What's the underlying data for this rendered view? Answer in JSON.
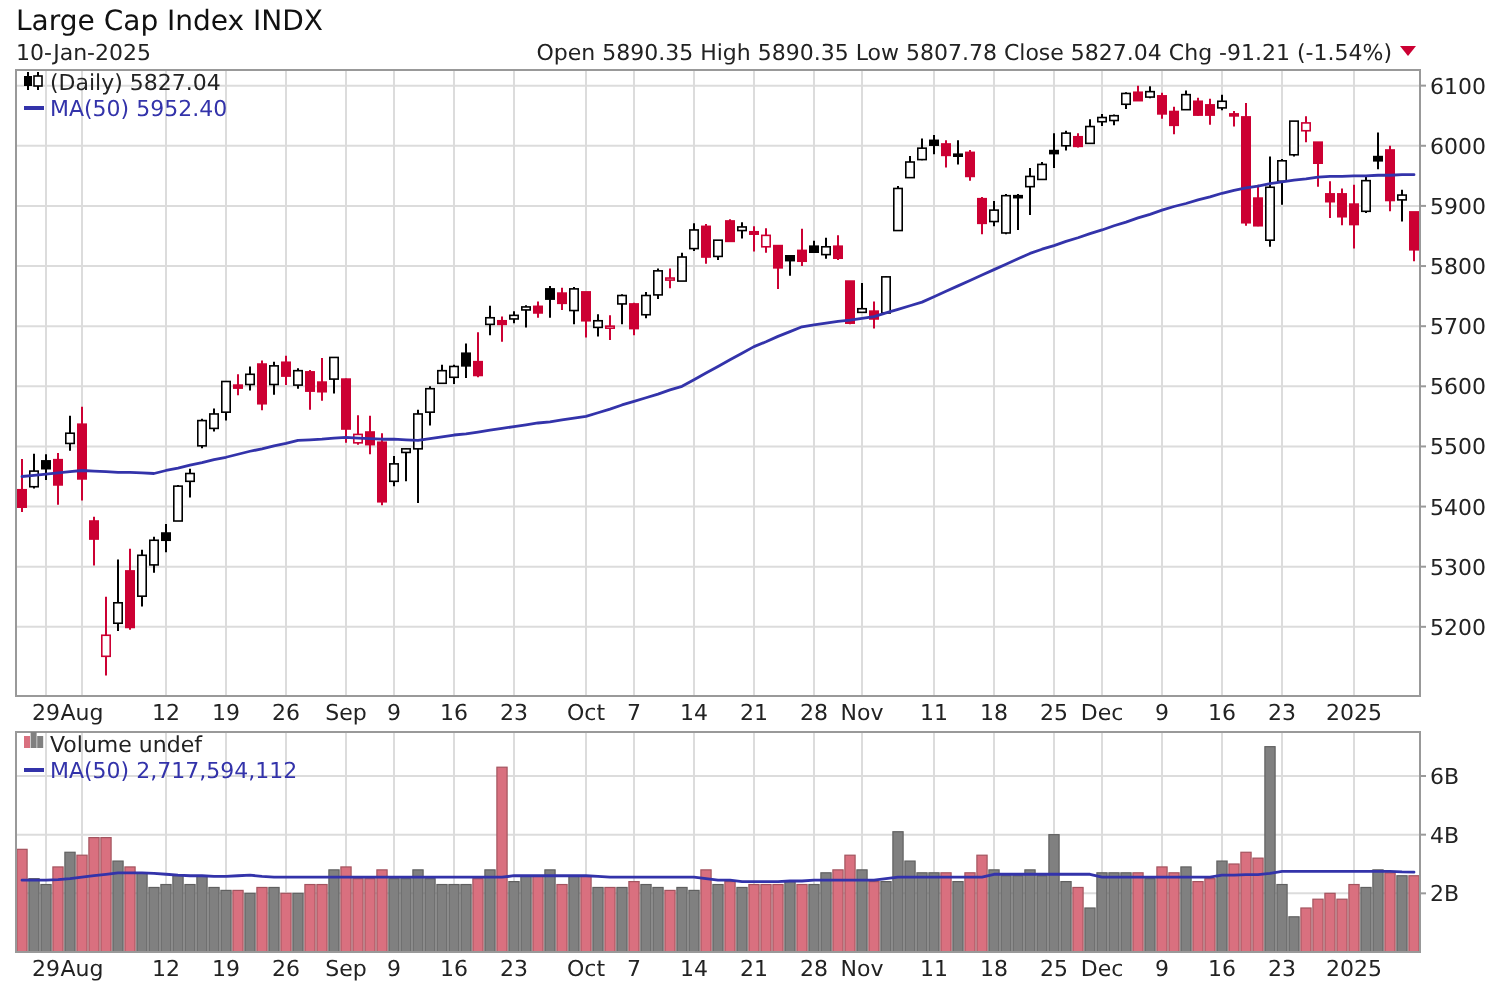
{
  "chart_data": [
    {
      "type": "candlestick",
      "title": "Large Cap Index INDX",
      "subtitle": "10-Jan-2025",
      "annotations": [
        "Open 5890.35  High 5890.35  Low 5807.78  Close 5827.04  Chg -91.21 (-1.54%)"
      ],
      "categories": [
        null,
        null,
        "29",
        null,
        null,
        "Aug",
        null,
        null,
        null,
        null,
        null,
        null,
        "12",
        null,
        null,
        null,
        null,
        "19",
        null,
        null,
        null,
        null,
        "26",
        null,
        null,
        null,
        null,
        "Sep",
        null,
        null,
        null,
        "9",
        null,
        null,
        null,
        null,
        "16",
        null,
        null,
        null,
        null,
        "23",
        null,
        null,
        null,
        null,
        null,
        "Oct",
        null,
        null,
        null,
        "7",
        null,
        null,
        null,
        null,
        "14",
        null,
        null,
        null,
        null,
        "21",
        null,
        null,
        null,
        null,
        "28",
        null,
        null,
        null,
        "Nov",
        null,
        null,
        null,
        null,
        null,
        "11",
        null,
        null,
        null,
        null,
        "18",
        null,
        null,
        null,
        null,
        "25",
        null,
        null,
        null,
        "Dec",
        null,
        null,
        null,
        null,
        "9",
        null,
        null,
        null,
        null,
        "16",
        null,
        null,
        null,
        null,
        "23",
        null,
        null,
        null,
        null,
        null,
        "2025",
        null,
        null,
        null,
        null,
        null
      ],
      "ylim": [
        5085,
        6126
      ],
      "yticks": [
        5200,
        5300,
        5400,
        5500,
        5600,
        5700,
        5800,
        5900,
        6000,
        6100
      ],
      "grid": true,
      "legend": "top left",
      "series": [
        {
          "name": "(Daily) 5827.04",
          "ohlc": [
            [
              5428,
              5479,
              5391,
              5399
            ],
            [
              5433,
              5488,
              5430,
              5459
            ],
            [
              5476,
              5487,
              5444,
              5463
            ],
            [
              5478,
              5489,
              5403,
              5436
            ],
            [
              5505,
              5551,
              5493,
              5522
            ],
            [
              5537,
              5566,
              5410,
              5446
            ],
            [
              5376,
              5383,
              5302,
              5346
            ],
            [
              5151,
              5250,
              5119,
              5186
            ],
            [
              5206,
              5312,
              5193,
              5240
            ],
            [
              5293,
              5330,
              5195,
              5199
            ],
            [
              5251,
              5328,
              5234,
              5319
            ],
            [
              5303,
              5350,
              5290,
              5344
            ],
            [
              5356,
              5371,
              5324,
              5344
            ],
            [
              5376,
              5436,
              5376,
              5434
            ],
            [
              5442,
              5463,
              5415,
              5455
            ],
            [
              5501,
              5546,
              5497,
              5543
            ],
            [
              5530,
              5563,
              5525,
              5554
            ],
            [
              5557,
              5608,
              5543,
              5608
            ],
            [
              5602,
              5620,
              5585,
              5597
            ],
            [
              5603,
              5633,
              5593,
              5620
            ],
            [
              5637,
              5643,
              5560,
              5571
            ],
            [
              5603,
              5641,
              5586,
              5634
            ],
            [
              5640,
              5651,
              5602,
              5617
            ],
            [
              5602,
              5630,
              5596,
              5626
            ],
            [
              5624,
              5627,
              5561,
              5592
            ],
            [
              5607,
              5647,
              5576,
              5591
            ],
            [
              5612,
              5648,
              5588,
              5648
            ],
            [
              5612,
              5613,
              5506,
              5529
            ],
            [
              5506,
              5552,
              5503,
              5520
            ],
            [
              5524,
              5551,
              5487,
              5503
            ],
            [
              5507,
              5522,
              5402,
              5408
            ],
            [
              5442,
              5484,
              5434,
              5471
            ],
            [
              5490,
              5497,
              5442,
              5496
            ],
            [
              5496,
              5561,
              5406,
              5554
            ],
            [
              5557,
              5600,
              5535,
              5596
            ],
            [
              5605,
              5636,
              5605,
              5626
            ],
            [
              5615,
              5636,
              5604,
              5633
            ],
            [
              5655,
              5671,
              5614,
              5634
            ],
            [
              5641,
              5690,
              5615,
              5618
            ],
            [
              5703,
              5734,
              5685,
              5714
            ],
            [
              5709,
              5716,
              5674,
              5703
            ],
            [
              5712,
              5725,
              5705,
              5718
            ],
            [
              5727,
              5735,
              5698,
              5732
            ],
            [
              5733,
              5741,
              5714,
              5722
            ],
            [
              5762,
              5767,
              5714,
              5745
            ],
            [
              5755,
              5764,
              5727,
              5738
            ],
            [
              5726,
              5765,
              5703,
              5762
            ],
            [
              5757,
              5757,
              5681,
              5709
            ],
            [
              5698,
              5720,
              5683,
              5709
            ],
            [
              5698,
              5718,
              5677,
              5700
            ],
            [
              5737,
              5753,
              5703,
              5751
            ],
            [
              5737,
              5739,
              5685,
              5696
            ],
            [
              5719,
              5757,
              5713,
              5751
            ],
            [
              5752,
              5796,
              5745,
              5792
            ],
            [
              5778,
              5796,
              5763,
              5780
            ],
            [
              5775,
              5822,
              5775,
              5815
            ],
            [
              5829,
              5871,
              5825,
              5860
            ],
            [
              5866,
              5870,
              5804,
              5815
            ],
            [
              5816,
              5843,
              5810,
              5843
            ],
            [
              5875,
              5878,
              5840,
              5841
            ],
            [
              5859,
              5873,
              5846,
              5865
            ],
            [
              5857,
              5866,
              5824,
              5853
            ],
            [
              5832,
              5863,
              5822,
              5851
            ],
            [
              5834,
              5834,
              5762,
              5797
            ],
            [
              5817,
              5817,
              5784,
              5809
            ],
            [
              5826,
              5862,
              5800,
              5808
            ],
            [
              5833,
              5842,
              5823,
              5823
            ],
            [
              5819,
              5847,
              5812,
              5832
            ],
            [
              5833,
              5851,
              5810,
              5813
            ],
            [
              5775,
              5775,
              5703,
              5705
            ],
            [
              5723,
              5772,
              5723,
              5729
            ],
            [
              5725,
              5741,
              5696,
              5712
            ],
            [
              5722,
              5783,
              5722,
              5782
            ],
            [
              5859,
              5933,
              5859,
              5929
            ],
            [
              5947,
              5983,
              5947,
              5973
            ],
            [
              5977,
              6012,
              5976,
              5996
            ],
            [
              6009,
              6018,
              5986,
              6001
            ],
            [
              6003,
              6009,
              5964,
              5984
            ],
            [
              5986,
              6009,
              5969,
              5985
            ],
            [
              5989,
              5993,
              5942,
              5949
            ],
            [
              5912,
              5915,
              5853,
              5871
            ],
            [
              5874,
              5908,
              5866,
              5893
            ],
            [
              5855,
              5920,
              5853,
              5917
            ],
            [
              5917,
              5920,
              5860,
              5917
            ],
            [
              5932,
              5963,
              5885,
              5949
            ],
            [
              5944,
              5973,
              5943,
              5969
            ],
            [
              5992,
              6021,
              5963,
              5987
            ],
            [
              6000,
              6025,
              5992,
              6021
            ],
            [
              6015,
              6021,
              5997,
              5999
            ],
            [
              6004,
              6044,
              6004,
              6032
            ],
            [
              6040,
              6053,
              6033,
              6047
            ],
            [
              6042,
              6052,
              6034,
              6050
            ],
            [
              6069,
              6089,
              6061,
              6087
            ],
            [
              6089,
              6100,
              6075,
              6075
            ],
            [
              6081,
              6099,
              6079,
              6090
            ],
            [
              6083,
              6088,
              6045,
              6053
            ],
            [
              6057,
              6065,
              6019,
              6034
            ],
            [
              6060,
              6092,
              6060,
              6085
            ],
            [
              6074,
              6080,
              6050,
              6051
            ],
            [
              6068,
              6078,
              6035,
              6051
            ],
            [
              6063,
              6085,
              6059,
              6074
            ],
            [
              6053,
              6058,
              6032,
              6050
            ],
            [
              6048,
              6071,
              5867,
              5872
            ],
            [
              5913,
              5935,
              5866,
              5867
            ],
            [
              5843,
              5982,
              5832,
              5931
            ],
            [
              5941,
              5978,
              5902,
              5975
            ],
            [
              5985,
              6041,
              5982,
              6041
            ],
            [
              6025,
              6049,
              6006,
              6038
            ],
            [
              6006,
              6006,
              5932,
              5971
            ],
            [
              5920,
              5941,
              5880,
              5907
            ],
            [
              5920,
              5929,
              5868,
              5882
            ],
            [
              5903,
              5935,
              5829,
              5869
            ],
            [
              5891,
              5949,
              5888,
              5942
            ],
            [
              5982,
              6022,
              5961,
              5975
            ],
            [
              5993,
              6000,
              5891,
              5909
            ],
            [
              5910,
              5927,
              5874,
              5918
            ],
            [
              5890,
              5890,
              5808,
              5827
            ]
          ],
          "colors": [
            "#cc0033",
            "#000000",
            "#000000",
            "#cc0033",
            "#000000",
            "#cc0033",
            "#cc0033",
            "#cc0033",
            "#000000",
            "#cc0033",
            "#000000",
            "#000000",
            "#000000",
            "#000000",
            "#000000",
            "#000000",
            "#000000",
            "#000000",
            "#cc0033",
            "#000000",
            "#cc0033",
            "#000000",
            "#cc0033",
            "#000000",
            "#cc0033",
            "#cc0033",
            "#000000",
            "#cc0033",
            "#cc0033",
            "#cc0033",
            "#cc0033",
            "#000000",
            "#000000",
            "#000000",
            "#000000",
            "#000000",
            "#000000",
            "#000000",
            "#cc0033",
            "#000000",
            "#cc0033",
            "#000000",
            "#000000",
            "#cc0033",
            "#000000",
            "#cc0033",
            "#000000",
            "#cc0033",
            "#000000",
            "#cc0033",
            "#000000",
            "#cc0033",
            "#000000",
            "#000000",
            "#cc0033",
            "#000000",
            "#000000",
            "#cc0033",
            "#000000",
            "#cc0033",
            "#000000",
            "#cc0033",
            "#cc0033",
            "#cc0033",
            "#000000",
            "#cc0033",
            "#000000",
            "#000000",
            "#cc0033",
            "#cc0033",
            "#000000",
            "#cc0033",
            "#000000",
            "#000000",
            "#000000",
            "#000000",
            "#000000",
            "#cc0033",
            "#000000",
            "#cc0033",
            "#cc0033",
            "#000000",
            "#000000",
            "#000000",
            "#000000",
            "#000000",
            "#000000",
            "#000000",
            "#cc0033",
            "#000000",
            "#000000",
            "#000000",
            "#000000",
            "#cc0033",
            "#000000",
            "#cc0033",
            "#cc0033",
            "#000000",
            "#cc0033",
            "#cc0033",
            "#000000",
            "#cc0033",
            "#cc0033",
            "#cc0033",
            "#000000",
            "#000000",
            "#000000",
            "#cc0033",
            "#cc0033",
            "#cc0033",
            "#cc0033",
            "#cc0033",
            "#000000",
            "#000000",
            "#cc0033",
            "#000000",
            "#cc0033"
          ]
        },
        {
          "type": "line",
          "name": "MA(50) 5952.40",
          "color": "#3333aa",
          "values": [
            5450,
            5452,
            5454,
            5456,
            5458,
            5460,
            5459,
            5458,
            5457,
            5457,
            5456,
            5455,
            5460,
            5464,
            5469,
            5473,
            5478,
            5482,
            5487,
            5492,
            5496,
            5501,
            5505,
            5510,
            5511,
            5512,
            5514,
            5515,
            5514,
            5513,
            5512,
            5512,
            5511,
            5510,
            5513,
            5516,
            5519,
            5521,
            5524,
            5527,
            5530,
            5533,
            5536,
            5539,
            5541,
            5544,
            5547,
            5550,
            5556,
            5562,
            5569,
            5575,
            5581,
            5587,
            5594,
            5600,
            5611,
            5622,
            5633,
            5644,
            5655,
            5666,
            5674,
            5683,
            5691,
            5699,
            5702,
            5705,
            5708,
            5710,
            5713,
            5716,
            5722,
            5728,
            5734,
            5740,
            5749,
            5758,
            5767,
            5776,
            5785,
            5794,
            5803,
            5812,
            5821,
            5828,
            5834,
            5841,
            5847,
            5854,
            5860,
            5867,
            5873,
            5880,
            5886,
            5893,
            5899,
            5904,
            5910,
            5915,
            5921,
            5926,
            5930,
            5933,
            5937,
            5940,
            5943,
            5945,
            5948,
            5949,
            5949,
            5950,
            5950,
            5951,
            5951,
            5952,
            5952
          ]
        }
      ]
    },
    {
      "type": "bar",
      "categories": [
        null,
        null,
        "29",
        null,
        null,
        "Aug",
        null,
        null,
        null,
        null,
        null,
        null,
        "12",
        null,
        null,
        null,
        null,
        "19",
        null,
        null,
        null,
        null,
        "26",
        null,
        null,
        null,
        null,
        "Sep",
        null,
        null,
        null,
        "9",
        null,
        null,
        null,
        null,
        "16",
        null,
        null,
        null,
        null,
        "23",
        null,
        null,
        null,
        null,
        null,
        "Oct",
        null,
        null,
        null,
        "7",
        null,
        null,
        null,
        null,
        "14",
        null,
        null,
        null,
        null,
        "21",
        null,
        null,
        null,
        null,
        "28",
        null,
        null,
        null,
        "Nov",
        null,
        null,
        null,
        null,
        null,
        "11",
        null,
        null,
        null,
        null,
        "18",
        null,
        null,
        null,
        null,
        "25",
        null,
        null,
        null,
        "Dec",
        null,
        null,
        null,
        null,
        "9",
        null,
        null,
        null,
        null,
        "16",
        null,
        null,
        null,
        null,
        "23",
        null,
        null,
        null,
        null,
        null,
        "2025",
        null,
        null,
        null,
        null,
        null
      ],
      "ylim": [
        0,
        7.5
      ],
      "yticks": [
        {
          "value": 2,
          "label": "2B"
        },
        {
          "value": 4,
          "label": "4B"
        },
        {
          "value": 6,
          "label": "6B"
        }
      ],
      "grid": true,
      "legend": "top left",
      "series": [
        {
          "name": "Volume undef",
          "values": [
            3.5,
            2.5,
            2.3,
            2.9,
            3.4,
            3.3,
            3.9,
            3.9,
            3.1,
            2.9,
            2.7,
            2.2,
            2.3,
            2.6,
            2.3,
            2.6,
            2.2,
            2.1,
            2.1,
            2.0,
            2.2,
            2.2,
            2.0,
            2.0,
            2.3,
            2.3,
            2.8,
            2.9,
            2.5,
            2.5,
            2.8,
            2.5,
            2.5,
            2.8,
            2.5,
            2.3,
            2.3,
            2.3,
            2.5,
            2.8,
            6.3,
            2.4,
            2.6,
            2.6,
            2.8,
            2.3,
            2.6,
            2.6,
            2.2,
            2.2,
            2.2,
            2.4,
            2.3,
            2.2,
            2.1,
            2.2,
            2.1,
            2.8,
            2.3,
            2.4,
            2.2,
            2.3,
            2.3,
            2.3,
            2.4,
            2.3,
            2.3,
            2.7,
            2.8,
            3.3,
            2.8,
            2.4,
            2.4,
            4.1,
            3.1,
            2.7,
            2.7,
            2.7,
            2.4,
            2.7,
            3.3,
            2.8,
            2.6,
            2.6,
            2.8,
            2.6,
            4.0,
            2.4,
            2.2,
            1.5,
            2.7,
            2.7,
            2.7,
            2.7,
            2.5,
            2.9,
            2.7,
            2.9,
            2.4,
            2.5,
            3.1,
            3.0,
            3.4,
            3.2,
            7.0,
            2.3,
            1.2,
            1.5,
            1.8,
            2.0,
            1.8,
            2.3,
            2.2,
            2.8,
            2.7,
            2.6,
            2.6
          ],
          "colors": [
            "#d9707f",
            "#808080",
            "#808080",
            "#d9707f",
            "#808080",
            "#d9707f",
            "#d9707f",
            "#d9707f",
            "#808080",
            "#d9707f",
            "#808080",
            "#808080",
            "#808080",
            "#808080",
            "#808080",
            "#808080",
            "#808080",
            "#808080",
            "#d9707f",
            "#808080",
            "#d9707f",
            "#808080",
            "#d9707f",
            "#808080",
            "#d9707f",
            "#d9707f",
            "#808080",
            "#d9707f",
            "#d9707f",
            "#d9707f",
            "#d9707f",
            "#808080",
            "#808080",
            "#808080",
            "#808080",
            "#808080",
            "#808080",
            "#808080",
            "#d9707f",
            "#808080",
            "#d9707f",
            "#808080",
            "#808080",
            "#d9707f",
            "#808080",
            "#d9707f",
            "#808080",
            "#d9707f",
            "#808080",
            "#d9707f",
            "#808080",
            "#d9707f",
            "#808080",
            "#808080",
            "#d9707f",
            "#808080",
            "#808080",
            "#d9707f",
            "#808080",
            "#d9707f",
            "#808080",
            "#d9707f",
            "#d9707f",
            "#d9707f",
            "#808080",
            "#d9707f",
            "#808080",
            "#808080",
            "#d9707f",
            "#d9707f",
            "#808080",
            "#d9707f",
            "#808080",
            "#808080",
            "#808080",
            "#808080",
            "#808080",
            "#d9707f",
            "#808080",
            "#d9707f",
            "#d9707f",
            "#808080",
            "#808080",
            "#808080",
            "#808080",
            "#808080",
            "#808080",
            "#808080",
            "#d9707f",
            "#808080",
            "#808080",
            "#808080",
            "#808080",
            "#d9707f",
            "#808080",
            "#d9707f",
            "#d9707f",
            "#808080",
            "#d9707f",
            "#d9707f",
            "#808080",
            "#d9707f",
            "#d9707f",
            "#d9707f",
            "#808080",
            "#808080",
            "#808080",
            "#d9707f",
            "#d9707f",
            "#d9707f",
            "#d9707f",
            "#d9707f",
            "#808080",
            "#808080",
            "#d9707f",
            "#808080",
            "#d9707f"
          ]
        },
        {
          "type": "line",
          "name": "MA(50) 2,717,594,112",
          "color": "#3333aa",
          "values": [
            2.45,
            2.45,
            2.45,
            2.47,
            2.5,
            2.55,
            2.6,
            2.65,
            2.7,
            2.7,
            2.7,
            2.68,
            2.65,
            2.62,
            2.6,
            2.6,
            2.58,
            2.58,
            2.6,
            2.62,
            2.58,
            2.55,
            2.55,
            2.55,
            2.55,
            2.55,
            2.55,
            2.55,
            2.55,
            2.55,
            2.55,
            2.55,
            2.55,
            2.55,
            2.55,
            2.55,
            2.55,
            2.55,
            2.55,
            2.55,
            2.55,
            2.6,
            2.6,
            2.6,
            2.6,
            2.6,
            2.6,
            2.6,
            2.58,
            2.55,
            2.55,
            2.55,
            2.55,
            2.55,
            2.55,
            2.55,
            2.55,
            2.5,
            2.45,
            2.45,
            2.4,
            2.4,
            2.4,
            2.4,
            2.42,
            2.42,
            2.45,
            2.45,
            2.45,
            2.45,
            2.45,
            2.45,
            2.5,
            2.55,
            2.55,
            2.55,
            2.55,
            2.55,
            2.55,
            2.55,
            2.55,
            2.65,
            2.65,
            2.65,
            2.65,
            2.65,
            2.65,
            2.65,
            2.65,
            2.65,
            2.55,
            2.55,
            2.55,
            2.55,
            2.55,
            2.55,
            2.55,
            2.55,
            2.55,
            2.55,
            2.62,
            2.62,
            2.64,
            2.64,
            2.68,
            2.75,
            2.75,
            2.75,
            2.75,
            2.75,
            2.75,
            2.75,
            2.75,
            2.75,
            2.75,
            2.73,
            2.72
          ]
        }
      ]
    }
  ]
}
